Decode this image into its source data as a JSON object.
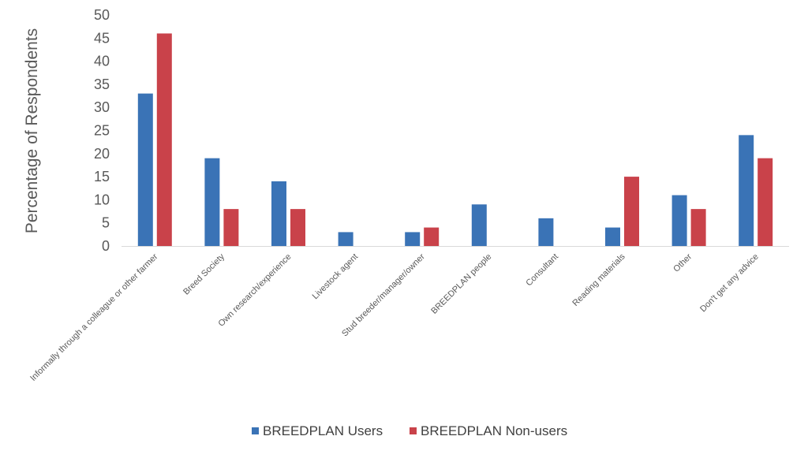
{
  "chart_data": {
    "type": "bar",
    "title": "",
    "xlabel": "",
    "ylabel": "Percentage of Respondents",
    "ylim": [
      0,
      50
    ],
    "yticks": [
      0,
      5,
      10,
      15,
      20,
      25,
      30,
      35,
      40,
      45,
      50
    ],
    "grid": false,
    "legend_position": "bottom",
    "categories": [
      "Informally through a colleague or other farmer",
      "Breed Society",
      "Own research/experience",
      "Livestock agent",
      "Stud breeder/manager/owner",
      "BREEDPLAN people",
      "Consultant",
      "Reading materials",
      "Other",
      "Don't get any advice"
    ],
    "series": [
      {
        "name": "BREEDPLAN Users",
        "color": "#3A73B6",
        "values": [
          33,
          19,
          14,
          3,
          3,
          9,
          6,
          4,
          11,
          24
        ]
      },
      {
        "name": "BREEDPLAN Non-users",
        "color": "#C9424A",
        "values": [
          46,
          8,
          8,
          0,
          4,
          0,
          0,
          15,
          8,
          19
        ]
      }
    ]
  }
}
